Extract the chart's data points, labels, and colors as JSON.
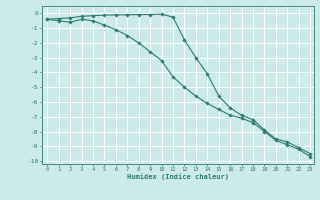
{
  "xlabel": "Humidex (Indice chaleur)",
  "background_color": "#cceaea",
  "grid_color": "#ffffff",
  "line_color": "#2d7b6e",
  "xlim": [
    -0.5,
    23.3
  ],
  "ylim": [
    -10.2,
    0.5
  ],
  "xticks": [
    0,
    1,
    2,
    3,
    4,
    5,
    6,
    7,
    8,
    9,
    10,
    11,
    12,
    13,
    14,
    15,
    16,
    17,
    18,
    19,
    20,
    21,
    22,
    23
  ],
  "yticks": [
    0,
    -1,
    -2,
    -3,
    -4,
    -5,
    -6,
    -7,
    -8,
    -9,
    -10
  ],
  "line1_x": [
    0,
    1,
    2,
    3,
    4,
    5,
    6,
    7,
    8,
    9,
    10,
    11,
    12,
    13,
    14,
    15,
    16,
    17,
    18,
    19,
    20,
    21,
    22,
    23
  ],
  "line1_y": [
    -0.4,
    -0.35,
    -0.3,
    -0.2,
    -0.15,
    -0.12,
    -0.1,
    -0.1,
    -0.08,
    -0.08,
    -0.05,
    -0.25,
    -1.8,
    -3.0,
    -4.1,
    -5.6,
    -6.4,
    -6.9,
    -7.2,
    -7.9,
    -8.5,
    -8.7,
    -9.1,
    -9.5
  ],
  "line2_x": [
    0,
    1,
    2,
    3,
    4,
    5,
    6,
    7,
    8,
    9,
    10,
    11,
    12,
    13,
    14,
    15,
    16,
    17,
    18,
    19,
    20,
    21,
    22,
    23
  ],
  "line2_y": [
    -0.4,
    -0.5,
    -0.6,
    -0.4,
    -0.5,
    -0.8,
    -1.1,
    -1.5,
    -2.0,
    -2.6,
    -3.2,
    -4.3,
    -5.0,
    -5.6,
    -6.1,
    -6.5,
    -6.9,
    -7.1,
    -7.4,
    -8.0,
    -8.6,
    -8.9,
    -9.2,
    -9.7
  ]
}
